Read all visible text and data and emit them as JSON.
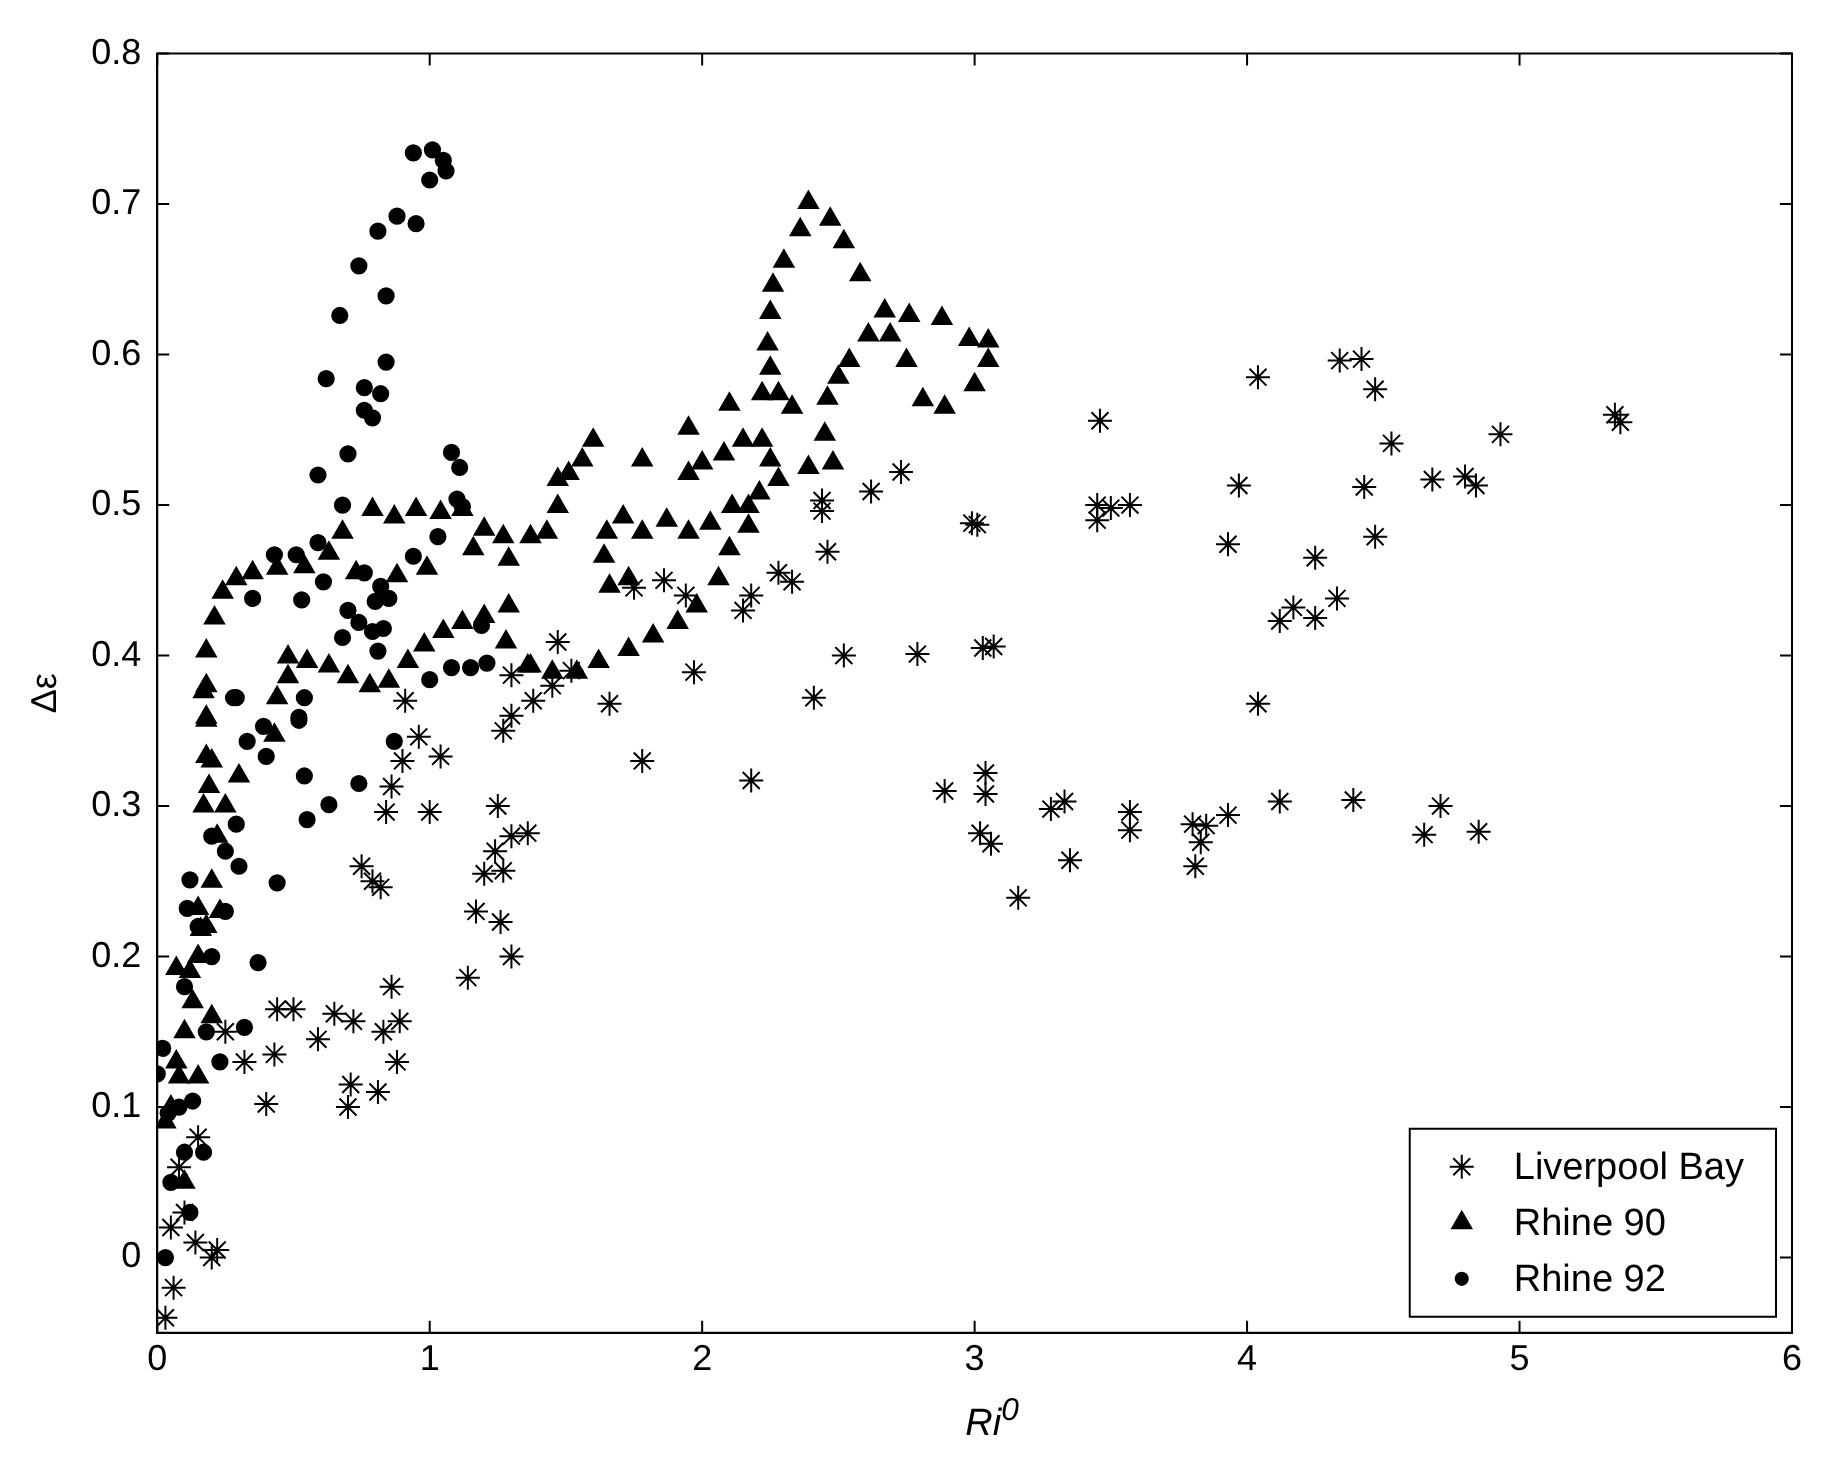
{
  "chart_data": {
    "type": "scatter",
    "xlabel": "Ri$^{0}$",
    "ylabel": "Δε",
    "xlim": [
      0,
      6
    ],
    "xticks": [
      0,
      1,
      2,
      3,
      4,
      5,
      6
    ],
    "ylim": [
      -0.05,
      0.8
    ],
    "yticks": [
      0,
      0.1,
      0.2,
      0.3,
      0.4,
      0.5,
      0.6,
      0.7,
      0.8
    ],
    "grid": false,
    "legend": "bottom right",
    "series": [
      {
        "name": "Liverpool Bay",
        "color": "#000000",
        "marker": "cross",
        "x": [
          5.35,
          5.37,
          4.93,
          4.8,
          4.84,
          4.68,
          4.53,
          4.47,
          4.42,
          4.34,
          4.04,
          4.43,
          4.47,
          4.25,
          4.33,
          4.17,
          4.12,
          4.25,
          3.97,
          3.93,
          4.04,
          4.12,
          4.39,
          4.65,
          4.71,
          4.85,
          3.93,
          3.85,
          3.8,
          3.83,
          3.81,
          3.57,
          3.57,
          3.33,
          3.28,
          3.35,
          3.16,
          3.04,
          3.04,
          3.02,
          3.06,
          2.89,
          3.03,
          3.07,
          2.99,
          3.01,
          3.46,
          3.45,
          3.5,
          3.57,
          3.45,
          2.79,
          2.52,
          2.41,
          2.18,
          2.73,
          2.62,
          2.44,
          2.46,
          2.44,
          2.33,
          2.28,
          2.18,
          2.15,
          1.97,
          1.78,
          1.66,
          1.86,
          1.94,
          1.75,
          1.47,
          1.45,
          1.52,
          1.38,
          1.3,
          1.27,
          1.3,
          1.25,
          1.3,
          1.36,
          1.24,
          1.27,
          1.2,
          1.3,
          1.26,
          1.17,
          1.14,
          1.04,
          0.96,
          1.0,
          0.91,
          0.86,
          0.84,
          0.9,
          0.75,
          0.79,
          0.82,
          0.86,
          0.83,
          0.89,
          0.88,
          0.81,
          0.7,
          0.71,
          0.72,
          0.65,
          0.59,
          0.5,
          0.44,
          0.43,
          0.4,
          0.32,
          0.25,
          0.22,
          0.2,
          0.14,
          0.05,
          0.03,
          0.08,
          0.15,
          0.06,
          0.1
        ],
        "values": [
          0.56,
          0.555,
          0.547,
          0.519,
          0.513,
          0.517,
          0.541,
          0.577,
          0.597,
          0.596,
          0.585,
          0.512,
          0.479,
          0.465,
          0.438,
          0.432,
          0.423,
          0.425,
          0.513,
          0.474,
          0.368,
          0.303,
          0.304,
          0.281,
          0.3,
          0.283,
          0.294,
          0.287,
          0.288,
          0.276,
          0.26,
          0.296,
          0.284,
          0.303,
          0.298,
          0.264,
          0.239,
          0.322,
          0.308,
          0.282,
          0.275,
          0.31,
          0.405,
          0.406,
          0.488,
          0.487,
          0.556,
          0.5,
          0.498,
          0.5,
          0.49,
          0.401,
          0.4,
          0.372,
          0.317,
          0.522,
          0.509,
          0.496,
          0.469,
          0.503,
          0.449,
          0.455,
          0.44,
          0.43,
          0.389,
          0.33,
          0.368,
          0.45,
          0.44,
          0.445,
          0.409,
          0.38,
          0.39,
          0.37,
          0.36,
          0.35,
          0.387,
          0.3,
          0.28,
          0.282,
          0.27,
          0.257,
          0.255,
          0.2,
          0.223,
          0.23,
          0.186,
          0.333,
          0.346,
          0.296,
          0.37,
          0.313,
          0.296,
          0.33,
          0.26,
          0.25,
          0.246,
          0.18,
          0.15,
          0.157,
          0.13,
          0.11,
          0.1,
          0.115,
          0.157,
          0.162,
          0.145,
          0.165,
          0.165,
          0.135,
          0.102,
          0.13,
          0.15,
          0.005,
          0.0,
          0.01,
          0.02,
          -0.04,
          0.06,
          0.08,
          -0.02,
          0.03
        ]
      },
      {
        "name": "Rhine 90",
        "color": "#000000",
        "marker": "triangle",
        "x": [
          2.39,
          2.47,
          2.52,
          2.58,
          2.67,
          2.76,
          2.88,
          2.98,
          3.05,
          3.05,
          3.0,
          2.89,
          2.81,
          2.75,
          2.69,
          2.61,
          2.54,
          2.5,
          2.46,
          2.45,
          2.48,
          2.39,
          2.36,
          2.3,
          2.26,
          2.25,
          2.24,
          2.25,
          2.22,
          2.28,
          2.33,
          2.1,
          1.95,
          2.15,
          2.22,
          2.25,
          2.28,
          2.21,
          2.17,
          2.11,
          2.08,
          2.0,
          1.95,
          1.78,
          2.17,
          2.1,
          2.03,
          1.95,
          1.87,
          1.78,
          1.71,
          1.65,
          1.64,
          1.66,
          1.73,
          2.06,
          1.98,
          1.91,
          1.6,
          1.56,
          1.51,
          1.47,
          1.43,
          1.47,
          0.24,
          0.21,
          0.18,
          0.18,
          0.18,
          0.29,
          0.35,
          0.44,
          0.54,
          0.63,
          0.68,
          0.79,
          0.87,
          0.95,
          1.04,
          1.12,
          1.2,
          1.27,
          1.37,
          0.73,
          0.88,
          0.99,
          1.16,
          1.29,
          0.48,
          0.55,
          0.63,
          0.7,
          0.78,
          0.85,
          0.92,
          0.98,
          1.05,
          1.12,
          1.2,
          1.29,
          1.28,
          1.36,
          0.48,
          0.44,
          1.82,
          1.73,
          1.62,
          1.54,
          1.45,
          1.37,
          0.07,
          0.05,
          0.1,
          0.12,
          0.15,
          0.13,
          0.18,
          0.2,
          0.22,
          0.25,
          0.17,
          0.2,
          0.23,
          0.08,
          0.03,
          0.1,
          0.3,
          0.15,
          0.2,
          0.17,
          0.18,
          0.18,
          0.19,
          0.43,
          0.15,
          0.16,
          0.07
        ],
        "values": [
          0.701,
          0.69,
          0.675,
          0.653,
          0.629,
          0.626,
          0.624,
          0.61,
          0.609,
          0.596,
          0.58,
          0.565,
          0.57,
          0.596,
          0.613,
          0.613,
          0.596,
          0.585,
          0.571,
          0.547,
          0.528,
          0.525,
          0.683,
          0.662,
          0.646,
          0.628,
          0.607,
          0.591,
          0.574,
          0.574,
          0.565,
          0.567,
          0.551,
          0.543,
          0.543,
          0.53,
          0.517,
          0.508,
          0.499,
          0.499,
          0.534,
          0.528,
          0.521,
          0.53,
          0.486,
          0.471,
          0.488,
          0.482,
          0.49,
          0.482,
          0.492,
          0.482,
          0.466,
          0.446,
          0.451,
          0.451,
          0.433,
          0.422,
          0.543,
          0.53,
          0.521,
          0.499,
          0.482,
          0.517,
          0.442,
          0.425,
          0.403,
          0.38,
          0.359,
          0.451,
          0.455,
          0.458,
          0.459,
          0.468,
          0.482,
          0.497,
          0.492,
          0.497,
          0.495,
          0.497,
          0.484,
          0.479,
          0.479,
          0.455,
          0.453,
          0.458,
          0.471,
          0.464,
          0.399,
          0.396,
          0.393,
          0.386,
          0.38,
          0.383,
          0.396,
          0.407,
          0.416,
          0.422,
          0.426,
          0.433,
          0.409,
          0.393,
          0.386,
          0.372,
          0.413,
          0.404,
          0.396,
          0.389,
          0.389,
          0.393,
          0.13,
          0.1,
          0.15,
          0.19,
          0.2,
          0.17,
          0.22,
          0.25,
          0.28,
          0.3,
          0.3,
          0.33,
          0.23,
          0.12,
          0.09,
          0.05,
          0.32,
          0.12,
          0.16,
          0.376,
          0.357,
          0.333,
          0.313,
          0.347,
          0.232,
          0.218,
          0.192
        ]
      },
      {
        "name": "Rhine 92",
        "color": "#000000",
        "marker": "circle",
        "x": [
          0.94,
          1.01,
          1.05,
          1.06,
          1.0,
          0.88,
          0.95,
          0.81,
          0.74,
          0.84,
          0.67,
          0.84,
          0.62,
          0.76,
          0.82,
          0.76,
          0.79,
          0.7,
          0.59,
          1.08,
          1.11,
          1.1,
          0.68,
          1.12,
          1.03,
          0.43,
          0.51,
          0.59,
          0.35,
          0.53,
          0.61,
          0.76,
          0.94,
          0.82,
          0.8,
          0.85,
          0.7,
          0.74,
          0.83,
          0.79,
          0.68,
          0.81,
          1.19,
          1.0,
          1.08,
          1.15,
          1.21,
          0.29,
          0.39,
          0.52,
          0.54,
          0.28,
          0.52,
          0.33,
          0.4,
          0.54,
          0.74,
          0.87,
          0.63,
          0.55,
          0.29,
          0.44,
          0.12,
          0.11,
          0.37,
          0.32,
          0.23,
          0.02,
          0.0,
          0.13,
          0.17,
          0.04,
          0.2,
          0.25,
          0.3,
          0.15,
          0.2,
          0.1,
          0.25,
          0.18,
          0.08,
          0.05,
          0.03,
          0.1,
          0.12
        ],
        "values": [
          0.734,
          0.736,
          0.729,
          0.722,
          0.716,
          0.692,
          0.687,
          0.682,
          0.659,
          0.639,
          0.626,
          0.595,
          0.584,
          0.578,
          0.574,
          0.563,
          0.558,
          0.534,
          0.52,
          0.535,
          0.525,
          0.504,
          0.5,
          0.499,
          0.479,
          0.467,
          0.467,
          0.475,
          0.438,
          0.437,
          0.449,
          0.455,
          0.466,
          0.446,
          0.436,
          0.438,
          0.43,
          0.422,
          0.418,
          0.416,
          0.412,
          0.403,
          0.42,
          0.384,
          0.392,
          0.392,
          0.395,
          0.372,
          0.353,
          0.359,
          0.372,
          0.372,
          0.357,
          0.343,
          0.333,
          0.32,
          0.315,
          0.343,
          0.301,
          0.291,
          0.288,
          0.249,
          0.251,
          0.232,
          0.196,
          0.153,
          0.13,
          0.139,
          0.122,
          0.104,
          0.07,
          0.096,
          0.28,
          0.27,
          0.26,
          0.22,
          0.2,
          0.18,
          0.23,
          0.15,
          0.1,
          0.05,
          0.0,
          0.07,
          0.03
        ]
      }
    ]
  }
}
